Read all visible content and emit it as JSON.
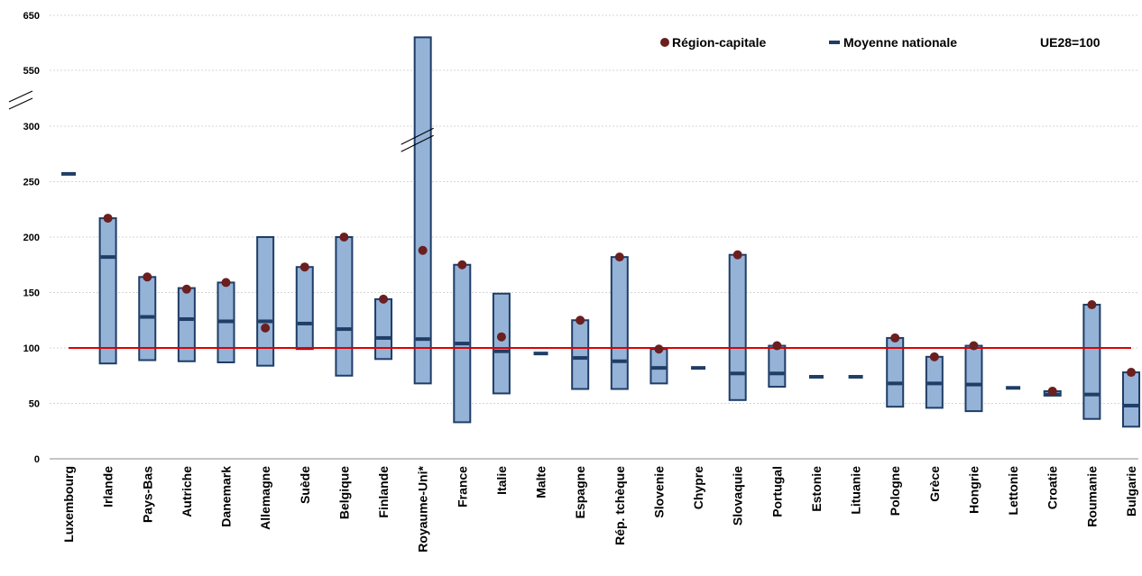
{
  "chart_data": {
    "type": "range-bar",
    "title": "",
    "xlabel": "",
    "ylabel": "",
    "y_ticks": [
      "0",
      "50",
      "100",
      "150",
      "200",
      "250",
      "300",
      "550",
      "650"
    ],
    "y_break": {
      "from": 300,
      "to": 550
    },
    "ylim": [
      0,
      650
    ],
    "reference_line": {
      "value": 100,
      "color": "#e00000"
    },
    "legend": {
      "capital": "Région-capitale",
      "national": "Moyenne nationale",
      "note": "UE28=100",
      "placement": "top-right"
    },
    "colors": {
      "bar_fill": "#95b3d7",
      "bar_stroke": "#1f3d66",
      "capital": "#6b1f1f",
      "national": "#1f3d66",
      "grid": "#c8c8c8"
    },
    "categories": [
      {
        "name": "Luxembourg",
        "min": null,
        "max": null,
        "national": 257,
        "capital": null
      },
      {
        "name": "Irlande",
        "min": 86,
        "max": 217,
        "national": 182,
        "capital": 217
      },
      {
        "name": "Pays-Bas",
        "min": 89,
        "max": 164,
        "national": 128,
        "capital": 164
      },
      {
        "name": "Autriche",
        "min": 88,
        "max": 154,
        "national": 126,
        "capital": 153
      },
      {
        "name": "Danemark",
        "min": 87,
        "max": 159,
        "national": 124,
        "capital": 159
      },
      {
        "name": "Allemagne",
        "min": 84,
        "max": 200,
        "national": 124,
        "capital": 118
      },
      {
        "name": "Suède",
        "min": 99,
        "max": 173,
        "national": 122,
        "capital": 173
      },
      {
        "name": "Belgique",
        "min": 75,
        "max": 200,
        "national": 117,
        "capital": 200
      },
      {
        "name": "Finlande",
        "min": 90,
        "max": 144,
        "national": 109,
        "capital": 144
      },
      {
        "name": "Royaume-Uni*",
        "min": 68,
        "max": 610,
        "national": 108,
        "capital": 188
      },
      {
        "name": "France",
        "min": 33,
        "max": 175,
        "national": 104,
        "capital": 175
      },
      {
        "name": "Italie",
        "min": 59,
        "max": 149,
        "national": 97,
        "capital": 110
      },
      {
        "name": "Malte",
        "min": null,
        "max": null,
        "national": 95,
        "capital": null
      },
      {
        "name": "Espagne",
        "min": 63,
        "max": 125,
        "national": 91,
        "capital": 125
      },
      {
        "name": "Rép. tchèque",
        "min": 63,
        "max": 182,
        "national": 88,
        "capital": 182
      },
      {
        "name": "Slovenie",
        "min": 68,
        "max": 99,
        "national": 82,
        "capital": 99
      },
      {
        "name": "Chypre",
        "min": null,
        "max": null,
        "national": 82,
        "capital": null
      },
      {
        "name": "Slovaquie",
        "min": 53,
        "max": 184,
        "national": 77,
        "capital": 184
      },
      {
        "name": "Portugal",
        "min": 65,
        "max": 102,
        "national": 77,
        "capital": 102
      },
      {
        "name": "Estonie",
        "min": null,
        "max": null,
        "national": 74,
        "capital": null
      },
      {
        "name": "Lituanie",
        "min": null,
        "max": null,
        "national": 74,
        "capital": null
      },
      {
        "name": "Pologne",
        "min": 47,
        "max": 109,
        "national": 68,
        "capital": 109
      },
      {
        "name": "Grèce",
        "min": 46,
        "max": 92,
        "national": 68,
        "capital": 92
      },
      {
        "name": "Hongrie",
        "min": 43,
        "max": 102,
        "national": 67,
        "capital": 102
      },
      {
        "name": "Lettonie",
        "min": null,
        "max": null,
        "national": 64,
        "capital": null
      },
      {
        "name": "Croatie",
        "min": 57,
        "max": 61,
        "national": 58,
        "capital": 61
      },
      {
        "name": "Roumanie",
        "min": 36,
        "max": 139,
        "national": 58,
        "capital": 139
      },
      {
        "name": "Bulgarie",
        "min": 29,
        "max": 78,
        "national": 48,
        "capital": 78
      }
    ]
  }
}
